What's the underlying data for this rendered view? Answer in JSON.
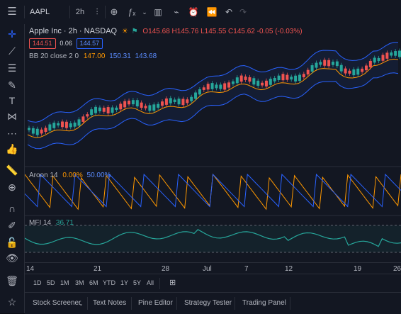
{
  "toolbar": {
    "symbol": "AAPL",
    "interval": "2h",
    "icons": [
      "menu-icon",
      "bar-style-icon",
      "add-icon",
      "indicators-icon",
      "chevron-down-icon",
      "layout-icon",
      "alert-icon",
      "replay-icon",
      "undo-icon",
      "redo-icon"
    ]
  },
  "left_tools": [
    "crosshair-icon",
    "trendline-icon",
    "fib-icon",
    "brush-icon",
    "text-icon",
    "pattern-icon",
    "measure-icon",
    "thumbs-up-icon",
    "ruler-icon",
    "zoom-icon",
    "magnet-icon",
    "lock-draw-icon",
    "lock-icon",
    "eye-icon",
    "trash-icon",
    "star-icon"
  ],
  "legend": {
    "title": "Apple Inc · 2h · NASDAQ",
    "ohlc": "O145.68 H145.76 L145.55 C145.62 -0.05 (-0.03%)",
    "bid": "144.51",
    "spread": "0.06",
    "ask": "144.57",
    "bb_label": "BB 20 close 2 0",
    "bb_basis": "147.00",
    "bb_upper": "150.31",
    "bb_lower": "143.68"
  },
  "aroon": {
    "label": "Aroon 14",
    "up": "0.00%",
    "down": "50.00%"
  },
  "mfi": {
    "label": "MFI 14",
    "value": "36.71"
  },
  "time_labels": [
    "14",
    "21",
    "28",
    "Jul",
    "7",
    "12",
    "19",
    "26"
  ],
  "ranges": [
    "1D",
    "5D",
    "1M",
    "3M",
    "6M",
    "YTD",
    "1Y",
    "5Y",
    "All"
  ],
  "bottom_tabs": [
    "Stock Screener",
    "Text Notes",
    "Pine Editor",
    "Strategy Tester",
    "Trading Panel"
  ],
  "colors": {
    "up": "#26a69a",
    "down": "#ef5350",
    "bb_basis": "#ff9800",
    "bb_band": "#2962ff",
    "aroon_up": "#ff9800",
    "aroon_down": "#2962ff",
    "mfi": "#26a69a"
  }
}
